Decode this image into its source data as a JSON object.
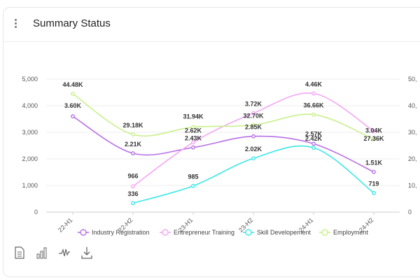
{
  "header": {
    "title": "Summary Status"
  },
  "icons": {
    "menu": "kebab-menu-icon",
    "tools": [
      "document-icon",
      "bar-chart-icon",
      "line-chart-icon",
      "download-icon"
    ]
  },
  "chart_data": {
    "type": "line",
    "categories": [
      "22-H1",
      "22-H2",
      "23-H1",
      "23-H2",
      "24-H1",
      "24-H2"
    ],
    "y_left": {
      "min": 0,
      "max": 5000,
      "ticks": [
        "0",
        "1,000",
        "2,000",
        "3,000",
        "4,000",
        "5,000"
      ]
    },
    "y_right": {
      "min": 0,
      "max": 50000,
      "ticks": [
        "0",
        "10,",
        "20,",
        "30,",
        "40,",
        "50,"
      ]
    },
    "grid": true,
    "legend_position": "bottom",
    "series": [
      {
        "name": "Industry Registration",
        "color": "#b770e8",
        "axis": "left",
        "values": [
          3600,
          2210,
          2430,
          2850,
          2570,
          1510
        ],
        "labels": [
          "3.60K",
          "2.21K",
          "2.43K",
          "2.85K",
          "2.57K",
          "1.51K"
        ]
      },
      {
        "name": "Entrepreneur Training",
        "color": "#f4a6f4",
        "axis": "left",
        "values": [
          null,
          966,
          2620,
          3720,
          4460,
          3040
        ],
        "labels": [
          null,
          "966",
          "2.62K",
          "3.72K",
          "4.46K",
          "3.04K"
        ]
      },
      {
        "name": "Skill Developement",
        "color": "#3fe6e6",
        "axis": "left",
        "values": [
          null,
          336,
          985,
          2020,
          2420,
          719
        ],
        "labels": [
          null,
          "336",
          "985",
          "2.02K",
          "2.42K",
          "719"
        ]
      },
      {
        "name": "Employment",
        "color": "#c8f08a",
        "axis": "right",
        "values": [
          44480,
          29180,
          31940,
          32700,
          36660,
          27360
        ],
        "labels": [
          "44.48K",
          "29.18K",
          "31.94K",
          "32.70K",
          "36.66K",
          "27.36K"
        ]
      }
    ]
  }
}
